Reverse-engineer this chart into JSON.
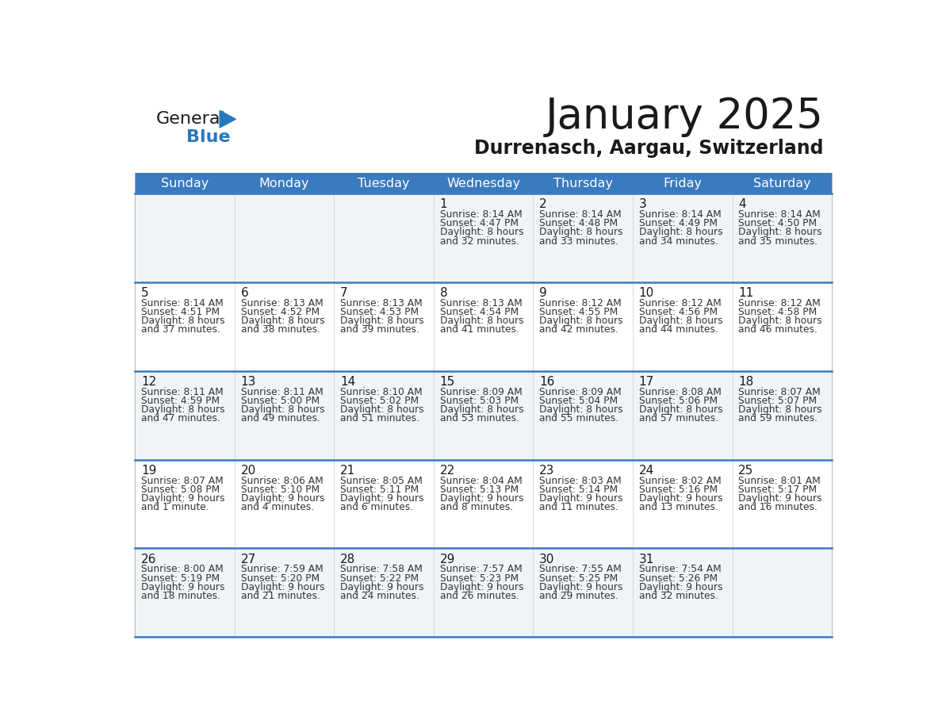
{
  "title": "January 2025",
  "subtitle": "Durrenasch, Aargau, Switzerland",
  "days_of_week": [
    "Sunday",
    "Monday",
    "Tuesday",
    "Wednesday",
    "Thursday",
    "Friday",
    "Saturday"
  ],
  "header_bg_color": "#3a7abf",
  "header_text_color": "#ffffff",
  "row_bg_odd": "#f0f4f8",
  "row_bg_even": "#ffffff",
  "day_number_color": "#1a1a1a",
  "cell_text_color": "#333333",
  "divider_color": "#3a7abf",
  "logo_general_color": "#1a1a1a",
  "logo_blue_color": "#2878be",
  "calendar_data": [
    [
      {
        "day": null,
        "sunrise": null,
        "sunset": null,
        "daylight_line1": null,
        "daylight_line2": null
      },
      {
        "day": null,
        "sunrise": null,
        "sunset": null,
        "daylight_line1": null,
        "daylight_line2": null
      },
      {
        "day": null,
        "sunrise": null,
        "sunset": null,
        "daylight_line1": null,
        "daylight_line2": null
      },
      {
        "day": 1,
        "sunrise": "8:14 AM",
        "sunset": "4:47 PM",
        "daylight_line1": "Daylight: 8 hours",
        "daylight_line2": "and 32 minutes."
      },
      {
        "day": 2,
        "sunrise": "8:14 AM",
        "sunset": "4:48 PM",
        "daylight_line1": "Daylight: 8 hours",
        "daylight_line2": "and 33 minutes."
      },
      {
        "day": 3,
        "sunrise": "8:14 AM",
        "sunset": "4:49 PM",
        "daylight_line1": "Daylight: 8 hours",
        "daylight_line2": "and 34 minutes."
      },
      {
        "day": 4,
        "sunrise": "8:14 AM",
        "sunset": "4:50 PM",
        "daylight_line1": "Daylight: 8 hours",
        "daylight_line2": "and 35 minutes."
      }
    ],
    [
      {
        "day": 5,
        "sunrise": "8:14 AM",
        "sunset": "4:51 PM",
        "daylight_line1": "Daylight: 8 hours",
        "daylight_line2": "and 37 minutes."
      },
      {
        "day": 6,
        "sunrise": "8:13 AM",
        "sunset": "4:52 PM",
        "daylight_line1": "Daylight: 8 hours",
        "daylight_line2": "and 38 minutes."
      },
      {
        "day": 7,
        "sunrise": "8:13 AM",
        "sunset": "4:53 PM",
        "daylight_line1": "Daylight: 8 hours",
        "daylight_line2": "and 39 minutes."
      },
      {
        "day": 8,
        "sunrise": "8:13 AM",
        "sunset": "4:54 PM",
        "daylight_line1": "Daylight: 8 hours",
        "daylight_line2": "and 41 minutes."
      },
      {
        "day": 9,
        "sunrise": "8:12 AM",
        "sunset": "4:55 PM",
        "daylight_line1": "Daylight: 8 hours",
        "daylight_line2": "and 42 minutes."
      },
      {
        "day": 10,
        "sunrise": "8:12 AM",
        "sunset": "4:56 PM",
        "daylight_line1": "Daylight: 8 hours",
        "daylight_line2": "and 44 minutes."
      },
      {
        "day": 11,
        "sunrise": "8:12 AM",
        "sunset": "4:58 PM",
        "daylight_line1": "Daylight: 8 hours",
        "daylight_line2": "and 46 minutes."
      }
    ],
    [
      {
        "day": 12,
        "sunrise": "8:11 AM",
        "sunset": "4:59 PM",
        "daylight_line1": "Daylight: 8 hours",
        "daylight_line2": "and 47 minutes."
      },
      {
        "day": 13,
        "sunrise": "8:11 AM",
        "sunset": "5:00 PM",
        "daylight_line1": "Daylight: 8 hours",
        "daylight_line2": "and 49 minutes."
      },
      {
        "day": 14,
        "sunrise": "8:10 AM",
        "sunset": "5:02 PM",
        "daylight_line1": "Daylight: 8 hours",
        "daylight_line2": "and 51 minutes."
      },
      {
        "day": 15,
        "sunrise": "8:09 AM",
        "sunset": "5:03 PM",
        "daylight_line1": "Daylight: 8 hours",
        "daylight_line2": "and 53 minutes."
      },
      {
        "day": 16,
        "sunrise": "8:09 AM",
        "sunset": "5:04 PM",
        "daylight_line1": "Daylight: 8 hours",
        "daylight_line2": "and 55 minutes."
      },
      {
        "day": 17,
        "sunrise": "8:08 AM",
        "sunset": "5:06 PM",
        "daylight_line1": "Daylight: 8 hours",
        "daylight_line2": "and 57 minutes."
      },
      {
        "day": 18,
        "sunrise": "8:07 AM",
        "sunset": "5:07 PM",
        "daylight_line1": "Daylight: 8 hours",
        "daylight_line2": "and 59 minutes."
      }
    ],
    [
      {
        "day": 19,
        "sunrise": "8:07 AM",
        "sunset": "5:08 PM",
        "daylight_line1": "Daylight: 9 hours",
        "daylight_line2": "and 1 minute."
      },
      {
        "day": 20,
        "sunrise": "8:06 AM",
        "sunset": "5:10 PM",
        "daylight_line1": "Daylight: 9 hours",
        "daylight_line2": "and 4 minutes."
      },
      {
        "day": 21,
        "sunrise": "8:05 AM",
        "sunset": "5:11 PM",
        "daylight_line1": "Daylight: 9 hours",
        "daylight_line2": "and 6 minutes."
      },
      {
        "day": 22,
        "sunrise": "8:04 AM",
        "sunset": "5:13 PM",
        "daylight_line1": "Daylight: 9 hours",
        "daylight_line2": "and 8 minutes."
      },
      {
        "day": 23,
        "sunrise": "8:03 AM",
        "sunset": "5:14 PM",
        "daylight_line1": "Daylight: 9 hours",
        "daylight_line2": "and 11 minutes."
      },
      {
        "day": 24,
        "sunrise": "8:02 AM",
        "sunset": "5:16 PM",
        "daylight_line1": "Daylight: 9 hours",
        "daylight_line2": "and 13 minutes."
      },
      {
        "day": 25,
        "sunrise": "8:01 AM",
        "sunset": "5:17 PM",
        "daylight_line1": "Daylight: 9 hours",
        "daylight_line2": "and 16 minutes."
      }
    ],
    [
      {
        "day": 26,
        "sunrise": "8:00 AM",
        "sunset": "5:19 PM",
        "daylight_line1": "Daylight: 9 hours",
        "daylight_line2": "and 18 minutes."
      },
      {
        "day": 27,
        "sunrise": "7:59 AM",
        "sunset": "5:20 PM",
        "daylight_line1": "Daylight: 9 hours",
        "daylight_line2": "and 21 minutes."
      },
      {
        "day": 28,
        "sunrise": "7:58 AM",
        "sunset": "5:22 PM",
        "daylight_line1": "Daylight: 9 hours",
        "daylight_line2": "and 24 minutes."
      },
      {
        "day": 29,
        "sunrise": "7:57 AM",
        "sunset": "5:23 PM",
        "daylight_line1": "Daylight: 9 hours",
        "daylight_line2": "and 26 minutes."
      },
      {
        "day": 30,
        "sunrise": "7:55 AM",
        "sunset": "5:25 PM",
        "daylight_line1": "Daylight: 9 hours",
        "daylight_line2": "and 29 minutes."
      },
      {
        "day": 31,
        "sunrise": "7:54 AM",
        "sunset": "5:26 PM",
        "daylight_line1": "Daylight: 9 hours",
        "daylight_line2": "and 32 minutes."
      },
      {
        "day": null,
        "sunrise": null,
        "sunset": null,
        "daylight_line1": null,
        "daylight_line2": null
      }
    ]
  ]
}
